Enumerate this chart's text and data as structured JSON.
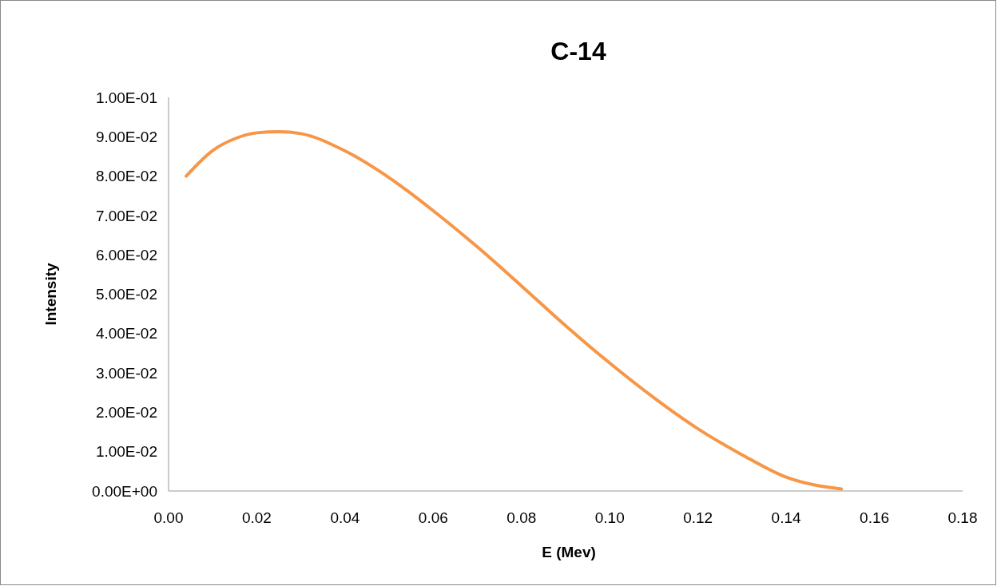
{
  "chart_data": {
    "type": "line",
    "title": "C-14",
    "xlabel": "E (Mev)",
    "ylabel": "Intensity",
    "xlim": [
      0,
      0.18
    ],
    "ylim": [
      0,
      0.1
    ],
    "xticks": [
      {
        "value": 0,
        "label": "0.00"
      },
      {
        "value": 0.02,
        "label": "0.02"
      },
      {
        "value": 0.04,
        "label": "0.04"
      },
      {
        "value": 0.06,
        "label": "0.06"
      },
      {
        "value": 0.08,
        "label": "0.08"
      },
      {
        "value": 0.1,
        "label": "0.10"
      },
      {
        "value": 0.12,
        "label": "0.12"
      },
      {
        "value": 0.14,
        "label": "0.14"
      },
      {
        "value": 0.16,
        "label": "0.16"
      },
      {
        "value": 0.18,
        "label": "0.18"
      }
    ],
    "yticks": [
      {
        "value": 0,
        "label": "0.00E+00"
      },
      {
        "value": 0.01,
        "label": "1.00E-02"
      },
      {
        "value": 0.02,
        "label": "2.00E-02"
      },
      {
        "value": 0.03,
        "label": "3.00E-02"
      },
      {
        "value": 0.04,
        "label": "4.00E-02"
      },
      {
        "value": 0.05,
        "label": "5.00E-02"
      },
      {
        "value": 0.06,
        "label": "6.00E-02"
      },
      {
        "value": 0.07,
        "label": "7.00E-02"
      },
      {
        "value": 0.08,
        "label": "8.00E-02"
      },
      {
        "value": 0.09,
        "label": "9.00E-02"
      },
      {
        "value": 0.1,
        "label": "1.00E-01"
      }
    ],
    "x": [
      0.004,
      0.01,
      0.015,
      0.02,
      0.025,
      0.03,
      0.04,
      0.05,
      0.06,
      0.07,
      0.08,
      0.09,
      0.1,
      0.11,
      0.12,
      0.13,
      0.14,
      0.1525
    ],
    "series": [
      {
        "color": "#f79646",
        "values": [
          0.08,
          0.0865,
          0.0895,
          0.091,
          0.0913,
          0.0908,
          0.0864,
          0.0796,
          0.0712,
          0.062,
          0.0521,
          0.042,
          0.0325,
          0.0237,
          0.0158,
          0.0092,
          0.0035,
          0.0005
        ]
      }
    ],
    "grid": false,
    "marker": "none",
    "line_style": "solid"
  }
}
